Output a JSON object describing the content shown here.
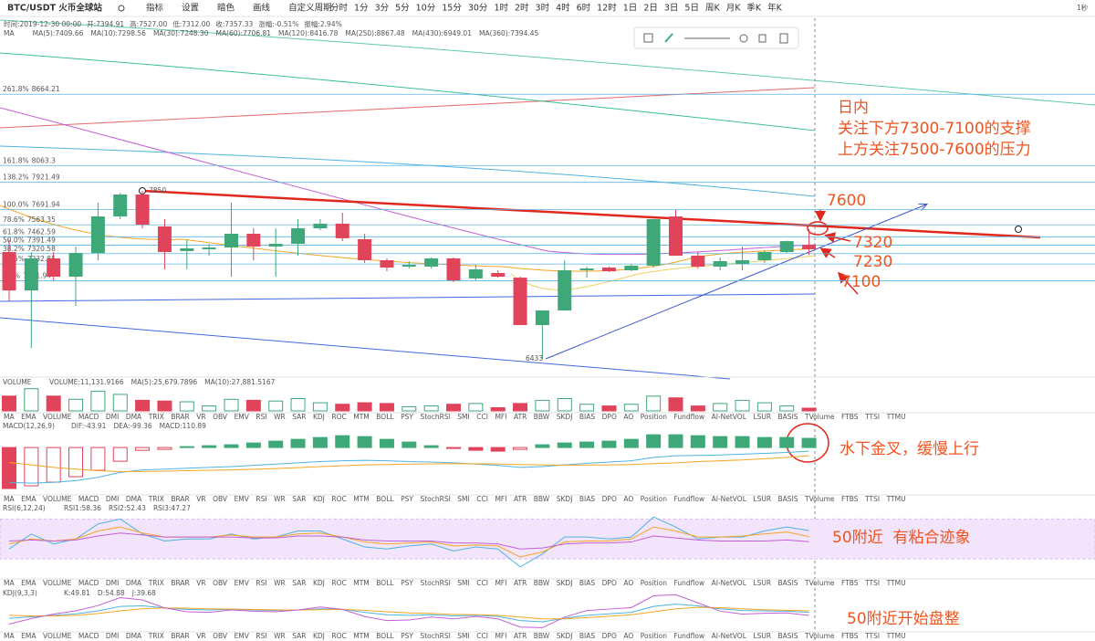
{
  "header": {
    "symbol": "BTC/USDT 火币全球站",
    "tools": [
      "指标",
      "设置",
      "暗色",
      "画线",
      "自定义周期"
    ],
    "periods": [
      "分时",
      "1分",
      "3分",
      "5分",
      "10分",
      "15分",
      "30分",
      "1时",
      "2时",
      "3时",
      "4时",
      "6时",
      "12时",
      "1日",
      "2日",
      "3日",
      "5日",
      "周K",
      "月K",
      "季K",
      "年K"
    ],
    "active_period_index": 13,
    "right": "1秒"
  },
  "info": [
    "时间:2019-12-30 00:00",
    "开:7394.91",
    "高:7527.00",
    "低:7312.00",
    "收:7357.33",
    "涨幅:-0.51%",
    "振幅:2.94%"
  ],
  "ma_legend": {
    "label": "MA",
    "items": [
      {
        "text": "MA(5):7409.66",
        "color": "#9ad0ec"
      },
      {
        "text": "MA(10):7298.56",
        "color": "#f5a623"
      },
      {
        "text": "MA(30):7248.30",
        "color": "#c45fd6"
      },
      {
        "text": "MA(60):7706.81",
        "color": "#4fb3e0"
      },
      {
        "text": "MA(120):8416.78",
        "color": "#3bbf9a"
      },
      {
        "text": "MA(250):8867.48",
        "color": "#e36a6a"
      },
      {
        "text": "MA(430):6949.01",
        "color": "#4169e1"
      },
      {
        "text": "MA(360):7394.45",
        "color": "#5fc9b0"
      }
    ]
  },
  "main": {
    "ylim": [
      6287,
      9151
    ],
    "up_color": "#3fa878",
    "down_color": "#e0435a",
    "open": [
      7334,
      7010,
      7280,
      7126,
      7326,
      7634,
      7819,
      7550,
      7342,
      7357,
      7372,
      7488,
      7380,
      7403,
      7534,
      7573,
      7442,
      7265,
      7211,
      7211,
      7280,
      7111,
      7157,
      7118,
      6718,
      6841,
      7180,
      7203,
      7180,
      7219,
      7634,
      7303,
      7211,
      7234,
      7265,
      7334,
      7394.91
    ],
    "high": [
      7442,
      7334,
      7334,
      7380,
      7750,
      7834,
      7850,
      7611,
      7442,
      7403,
      7750,
      7534,
      7534,
      7611,
      7611,
      7665,
      7488,
      7280,
      7257,
      7288,
      7288,
      7226,
      7180,
      7126,
      6841,
      7265,
      7211,
      7211,
      7234,
      7611,
      7688,
      7334,
      7288,
      7380,
      7350,
      7430,
      7527
    ],
    "low": [
      6918,
      6525,
      7095,
      6880,
      7265,
      7611,
      7534,
      7188,
      7188,
      7303,
      7126,
      7265,
      7126,
      7303,
      7519,
      7426,
      7242,
      7172,
      7195,
      7195,
      7080,
      7095,
      7118,
      6718,
      6433,
      6841,
      7118,
      7165,
      7172,
      7203,
      7303,
      7195,
      7180,
      7180,
      7242,
      7326,
      7312
    ],
    "close": [
      7010,
      7280,
      7126,
      7326,
      7634,
      7819,
      7565,
      7334,
      7365,
      7372,
      7488,
      7380,
      7403,
      7534,
      7573,
      7450,
      7265,
      7203,
      7226,
      7280,
      7095,
      7188,
      7126,
      6718,
      6841,
      7180,
      7195,
      7172,
      7219,
      7611,
      7303,
      7211,
      7257,
      7265,
      7334,
      7426,
      7357.33
    ],
    "high_label": 7850,
    "low_label": 6433,
    "fib_levels": [
      {
        "ratio": "261.8%",
        "price": 8664.21
      },
      {
        "ratio": "161.8%",
        "price": 8063.3
      },
      {
        "ratio": "138.2%",
        "price": 7921.49
      },
      {
        "ratio": "100.0%",
        "price": 7691.94
      },
      {
        "ratio": "78.6%",
        "price": 7563.35
      },
      {
        "ratio": "61.8%",
        "price": 7462.59
      },
      {
        "ratio": "50.0%",
        "price": 7391.49
      },
      {
        "ratio": "38.2%",
        "price": 7320.58
      },
      {
        "ratio": "23.6%",
        "price": 7232.85
      },
      {
        "ratio": "0.0%",
        "price": 7091.94
      }
    ],
    "fib_color": "#5ab4e6"
  },
  "volume": {
    "label": "VOLUME",
    "legend": [
      {
        "text": "VOLUME:11,131.9166",
        "color": "#555"
      },
      {
        "text": "MA(5):25,679.7896",
        "color": "#c45fd6"
      },
      {
        "text": "MA(10):27,881.5167",
        "color": "#f5a623"
      }
    ],
    "ylim": [
      0,
      100000
    ],
    "values": [
      60000,
      90000,
      60000,
      47000,
      80000,
      67000,
      43000,
      40000,
      37000,
      20000,
      47000,
      43000,
      40000,
      50000,
      33000,
      27000,
      33000,
      30000,
      17000,
      20000,
      27000,
      30000,
      13000,
      30000,
      43000,
      50000,
      27000,
      20000,
      27000,
      60000,
      53000,
      20000,
      30000,
      43000,
      33000,
      20000,
      11131.9166
    ]
  },
  "indicator_tabs": [
    "MA",
    "EMA",
    "VOLUME",
    "MACD",
    "DMI",
    "DMA",
    "TRIX",
    "BRAR",
    "VR",
    "OBV",
    "EMV",
    "RSI",
    "WR",
    "SAR",
    "KDJ",
    "ROC",
    "MTM",
    "BOLL",
    "PSY",
    "StochRSI",
    "SMI",
    "CCI",
    "MFI",
    "ATR",
    "BBW",
    "SKDJ",
    "BIAS",
    "DPO",
    "AO",
    "Position",
    "Fundflow",
    "AI-NetVOL",
    "LSUR",
    "BASIS",
    "TVolume",
    "FTBS",
    "TTSI",
    "TTMU"
  ],
  "macd": {
    "label": "MACD(12,26,9)",
    "legend": [
      {
        "text": "DIF:-43.91",
        "color": "#4fb3e0"
      },
      {
        "text": "DEA:-99.36",
        "color": "#f5a623"
      },
      {
        "text": "MACD:110.89",
        "color": "#c45fd6"
      }
    ],
    "ylim": [
      -550,
      310
    ],
    "hist": [
      -495,
      -462,
      -418,
      -352,
      -275,
      -165,
      -33,
      -22,
      11,
      22,
      33,
      55,
      77,
      99,
      121,
      143,
      132,
      99,
      66,
      22,
      -11,
      -33,
      -44,
      -22,
      33,
      55,
      66,
      77,
      99,
      154,
      154,
      143,
      132,
      132,
      121,
      121,
      110.89
    ],
    "dif": [
      -420,
      -430,
      -420,
      -400,
      -360,
      -300,
      -270,
      -260,
      -250,
      -240,
      -230,
      -215,
      -200,
      -185,
      -170,
      -160,
      -155,
      -160,
      -170,
      -175,
      -185,
      -200,
      -215,
      -240,
      -230,
      -210,
      -190,
      -175,
      -160,
      -120,
      -100,
      -95,
      -90,
      -80,
      -70,
      -60,
      -43.91
    ],
    "dea": [
      -180,
      -210,
      -240,
      -260,
      -280,
      -290,
      -290,
      -285,
      -280,
      -275,
      -270,
      -262,
      -253,
      -242,
      -230,
      -220,
      -210,
      -205,
      -200,
      -197,
      -195,
      -196,
      -199,
      -205,
      -210,
      -212,
      -212,
      -210,
      -205,
      -195,
      -185,
      -170,
      -160,
      -150,
      -135,
      -118,
      -99.36
    ]
  },
  "rsi": {
    "label": "RSI(6,12,24)",
    "legend": [
      {
        "text": "RSI1:58.36",
        "color": "#4fb3e0"
      },
      {
        "text": "RSI2:52.43",
        "color": "#f5a623"
      },
      {
        "text": "RSI3:47.27",
        "color": "#c45fd6"
      }
    ],
    "ylim": [
      10,
      85
    ],
    "band": [
      30,
      70
    ],
    "series": [
      [
        40,
        55,
        45,
        50,
        65,
        70,
        55,
        48,
        50,
        50,
        55,
        50,
        52,
        58,
        58,
        50,
        42,
        40,
        43,
        45,
        38,
        42,
        40,
        22,
        35,
        52,
        52,
        50,
        52,
        72,
        62,
        50,
        52,
        52,
        58,
        62,
        58.36
      ],
      [
        45,
        50,
        48,
        50,
        58,
        62,
        56,
        52,
        52,
        52,
        54,
        52,
        52,
        55,
        56,
        52,
        47,
        45,
        46,
        47,
        43,
        44,
        43,
        32,
        37,
        47,
        48,
        48,
        50,
        62,
        58,
        52,
        52,
        53,
        55,
        57,
        52.43
      ],
      [
        48,
        49,
        48,
        49,
        53,
        56,
        54,
        52,
        52,
        52,
        52,
        51,
        51,
        53,
        53,
        52,
        49,
        48,
        48,
        48,
        46,
        46,
        45,
        40,
        41,
        45,
        46,
        46,
        47,
        53,
        51,
        49,
        48,
        48,
        48,
        49,
        47.27
      ]
    ]
  },
  "kdj": {
    "label": "KDJ(9,3,3)",
    "legend": [
      {
        "text": "K:49.81",
        "color": "#4fb3e0"
      },
      {
        "text": "D:54.88",
        "color": "#f5a623"
      },
      {
        "text": "J:39.68",
        "color": "#c45fd6"
      }
    ],
    "ylim": [
      -10,
      120
    ],
    "series": [
      [
        30,
        35,
        40,
        45,
        55,
        70,
        72,
        65,
        60,
        58,
        60,
        58,
        56,
        58,
        62,
        60,
        50,
        42,
        40,
        42,
        38,
        40,
        36,
        22,
        18,
        30,
        40,
        45,
        50,
        70,
        78,
        72,
        62,
        56,
        55,
        54,
        49.81
      ],
      [
        40,
        38,
        38,
        40,
        46,
        55,
        62,
        65,
        64,
        62,
        61,
        60,
        58,
        58,
        59,
        60,
        57,
        52,
        48,
        46,
        43,
        42,
        40,
        34,
        28,
        28,
        32,
        37,
        42,
        52,
        62,
        67,
        66,
        62,
        59,
        57,
        54.88
      ],
      [
        10,
        29,
        44,
        55,
        73,
        100,
        92,
        65,
        52,
        50,
        58,
        54,
        52,
        58,
        68,
        60,
        36,
        22,
        24,
        34,
        28,
        36,
        28,
        0,
        -2,
        34,
        56,
        61,
        66,
        106,
        110,
        82,
        54,
        44,
        47,
        48,
        39.68
      ]
    ]
  },
  "annotations": {
    "intraday": "日内",
    "support": "关注下方7300-7100的支撑",
    "resistance": "上方关注7500-7600的压力",
    "level_7600": "7600",
    "level_7320": "7320",
    "level_7230": "7230",
    "level_7100": "7100",
    "macd_note": "水下金叉，缓慢上行",
    "rsi_note": "50附近  有粘合迹象",
    "kdj_note": "50附近开始盘整"
  }
}
